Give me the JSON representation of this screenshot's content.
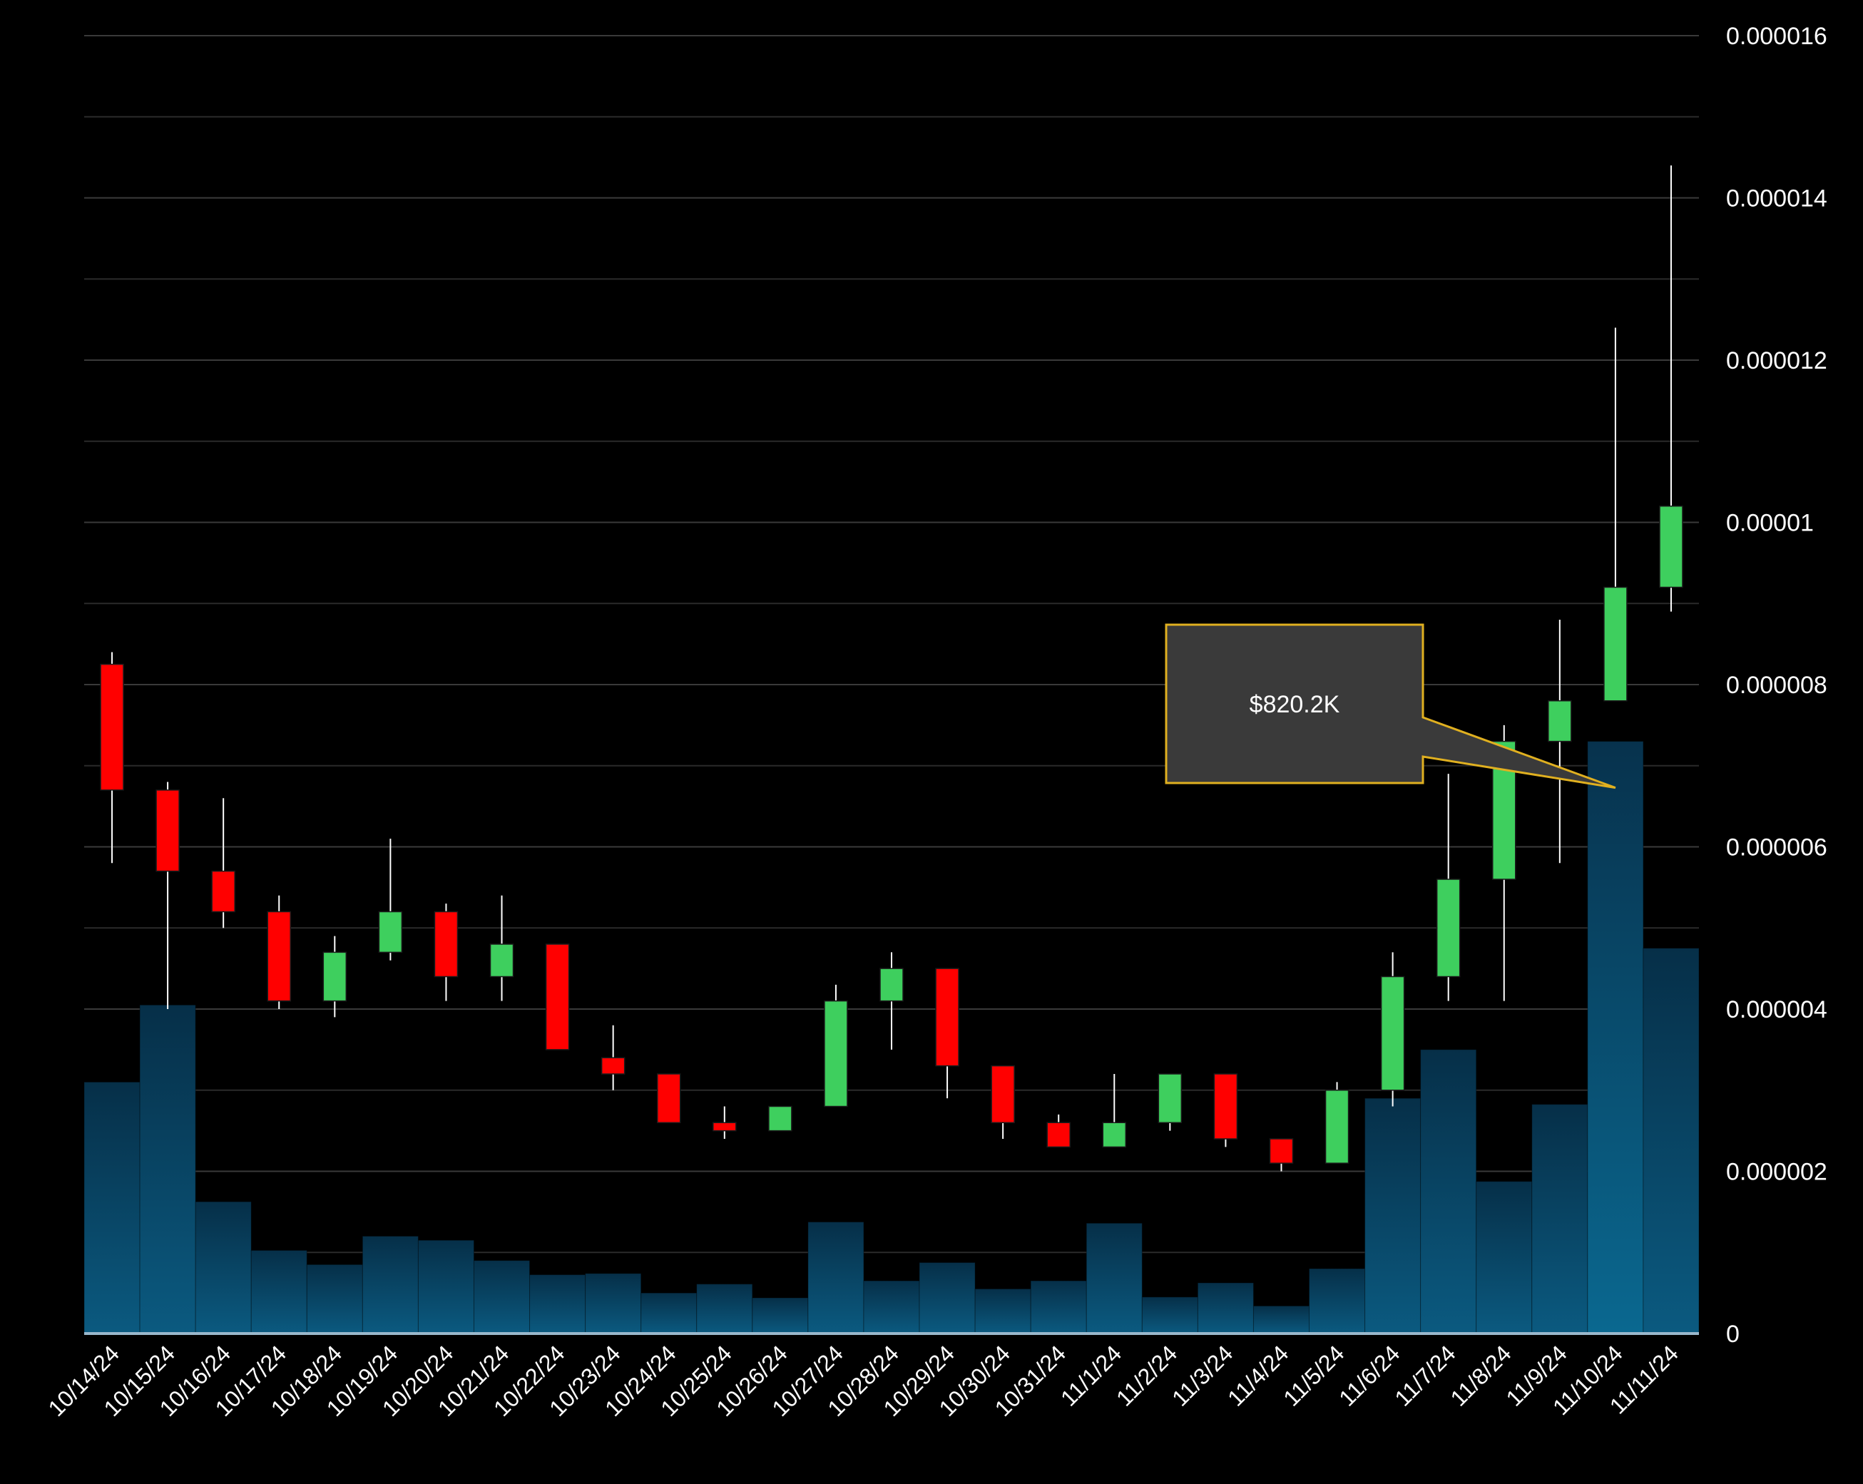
{
  "chart_data": {
    "type": "candlestick",
    "title": "",
    "xlabel": "",
    "ylabel": "",
    "ylim": [
      0,
      1.6e-05
    ],
    "y_ticks": [
      "0",
      "0.000002",
      "0.000004",
      "0.000006",
      "0.000008",
      "0.00001",
      "0.000012",
      "0.000014",
      "0.000016"
    ],
    "y_tick_values": [
      0,
      2e-06,
      4e-06,
      6e-06,
      8e-06,
      1e-05,
      1.2e-05,
      1.4e-05,
      1.6e-05
    ],
    "grid": true,
    "y_axis_side": "right",
    "categories": [
      "10/14/24",
      "10/15/24",
      "10/16/24",
      "10/17/24",
      "10/18/24",
      "10/19/24",
      "10/20/24",
      "10/21/24",
      "10/22/24",
      "10/23/24",
      "10/24/24",
      "10/25/24",
      "10/26/24",
      "10/27/24",
      "10/28/24",
      "10/29/24",
      "10/30/24",
      "10/31/24",
      "11/1/24",
      "11/2/24",
      "11/3/24",
      "11/4/24",
      "11/5/24",
      "11/6/24",
      "11/7/24",
      "11/8/24",
      "11/9/24",
      "11/10/24",
      "11/11/24"
    ],
    "candles": [
      {
        "open": 8.25e-06,
        "high": 8.4e-06,
        "low": 5.8e-06,
        "close": 6.7e-06
      },
      {
        "open": 6.7e-06,
        "high": 6.8e-06,
        "low": 4e-06,
        "close": 5.7e-06
      },
      {
        "open": 5.7e-06,
        "high": 6.6e-06,
        "low": 5e-06,
        "close": 5.2e-06
      },
      {
        "open": 5.2e-06,
        "high": 5.4e-06,
        "low": 4e-06,
        "close": 4.1e-06
      },
      {
        "open": 4.1e-06,
        "high": 4.9e-06,
        "low": 3.9e-06,
        "close": 4.7e-06
      },
      {
        "open": 4.7e-06,
        "high": 6.1e-06,
        "low": 4.6e-06,
        "close": 5.2e-06
      },
      {
        "open": 5.2e-06,
        "high": 5.3e-06,
        "low": 4.1e-06,
        "close": 4.4e-06
      },
      {
        "open": 4.4e-06,
        "high": 5.4e-06,
        "low": 4.1e-06,
        "close": 4.8e-06
      },
      {
        "open": 4.8e-06,
        "high": 4.8e-06,
        "low": 3.5e-06,
        "close": 3.5e-06
      },
      {
        "open": 3.4e-06,
        "high": 3.8e-06,
        "low": 3e-06,
        "close": 3.2e-06
      },
      {
        "open": 3.2e-06,
        "high": 3.2e-06,
        "low": 2.6e-06,
        "close": 2.6e-06
      },
      {
        "open": 2.6e-06,
        "high": 2.8e-06,
        "low": 2.4e-06,
        "close": 2.5e-06
      },
      {
        "open": 2.5e-06,
        "high": 2.8e-06,
        "low": 2.5e-06,
        "close": 2.8e-06
      },
      {
        "open": 2.8e-06,
        "high": 4.3e-06,
        "low": 2.8e-06,
        "close": 4.1e-06
      },
      {
        "open": 4.1e-06,
        "high": 4.7e-06,
        "low": 3.5e-06,
        "close": 4.5e-06
      },
      {
        "open": 4.5e-06,
        "high": 4.5e-06,
        "low": 2.9e-06,
        "close": 3.3e-06
      },
      {
        "open": 3.3e-06,
        "high": 3.3e-06,
        "low": 2.4e-06,
        "close": 2.6e-06
      },
      {
        "open": 2.6e-06,
        "high": 2.7e-06,
        "low": 2.3e-06,
        "close": 2.3e-06
      },
      {
        "open": 2.3e-06,
        "high": 3.2e-06,
        "low": 2.3e-06,
        "close": 2.6e-06
      },
      {
        "open": 2.6e-06,
        "high": 3.2e-06,
        "low": 2.5e-06,
        "close": 3.2e-06
      },
      {
        "open": 3.2e-06,
        "high": 3.2e-06,
        "low": 2.3e-06,
        "close": 2.4e-06
      },
      {
        "open": 2.4e-06,
        "high": 2.4e-06,
        "low": 2e-06,
        "close": 2.1e-06
      },
      {
        "open": 2.1e-06,
        "high": 3.1e-06,
        "low": 2.1e-06,
        "close": 3e-06
      },
      {
        "open": 3e-06,
        "high": 4.7e-06,
        "low": 2.8e-06,
        "close": 4.4e-06
      },
      {
        "open": 4.4e-06,
        "high": 6.9e-06,
        "low": 4.1e-06,
        "close": 5.6e-06
      },
      {
        "open": 5.6e-06,
        "high": 7.5e-06,
        "low": 4.1e-06,
        "close": 7.3e-06
      },
      {
        "open": 7.3e-06,
        "high": 8.8e-06,
        "low": 5.8e-06,
        "close": 7.8e-06
      },
      {
        "open": 7.8e-06,
        "high": 1.24e-05,
        "low": 7.8e-06,
        "close": 9.2e-06
      },
      {
        "open": 9.2e-06,
        "high": 1.44e-05,
        "low": 8.9e-06,
        "close": 1.02e-05
      }
    ],
    "volume": [
      620,
      810,
      325,
      205,
      170,
      240,
      230,
      180,
      145,
      148,
      100,
      122,
      88,
      275,
      130,
      175,
      110,
      130,
      272,
      90,
      125,
      68,
      160,
      580,
      700,
      375,
      565,
      1460,
      950
    ],
    "volume_ylim": [
      0,
      3200
    ],
    "callout": {
      "text": "$820.2K",
      "category": "11/10/24"
    },
    "colors": {
      "background": "#000000",
      "up": "#3ecf5e",
      "down": "#ff0000",
      "wick": "#ffffff",
      "volume_top": "#062f48",
      "volume_bottom": "#0b5a80",
      "highlight_volume_top": "#07324d",
      "highlight_volume_bottom": "#0a6890",
      "grid": "#2a2a2a",
      "axis": "#9ab8cc",
      "text": "#ffffff",
      "callout_fill": "#3a3a3a",
      "callout_stroke": "#e0b020"
    }
  }
}
